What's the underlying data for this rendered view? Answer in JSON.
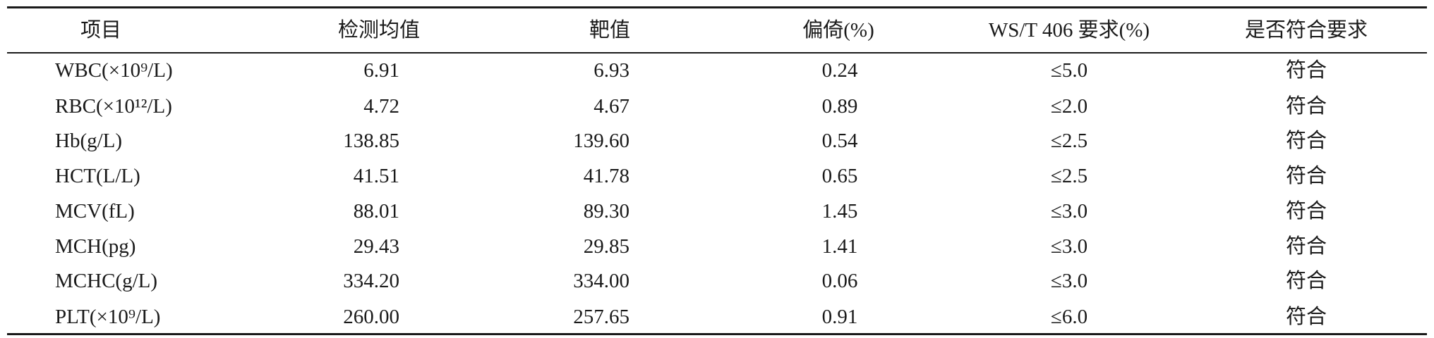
{
  "table": {
    "header": [
      "项目",
      "检测均值",
      "靶值",
      "偏倚(%)",
      "WS/T 406 要求(%)",
      "是否符合要求"
    ],
    "rows": [
      [
        "WBC(×10⁹/L)",
        "6.91",
        "6.93",
        "0.24",
        "≤5.0",
        "符合"
      ],
      [
        "RBC(×10¹²/L)",
        "4.72",
        "4.67",
        "0.89",
        "≤2.0",
        "符合"
      ],
      [
        "Hb(g/L)",
        "138.85",
        "139.60",
        "0.54",
        "≤2.5",
        "符合"
      ],
      [
        "HCT(L/L)",
        "41.51",
        "41.78",
        "0.65",
        "≤2.5",
        "符合"
      ],
      [
        "MCV(fL)",
        "88.01",
        "89.30",
        "1.45",
        "≤3.0",
        "符合"
      ],
      [
        "MCH(pg)",
        "29.43",
        "29.85",
        "1.41",
        "≤3.0",
        "符合"
      ],
      [
        "MCHC(g/L)",
        "334.20",
        "334.00",
        "0.06",
        "≤3.0",
        "符合"
      ],
      [
        "PLT(×10⁹/L)",
        "260.00",
        "257.65",
        "0.91",
        "≤6.0",
        "符合"
      ]
    ]
  }
}
